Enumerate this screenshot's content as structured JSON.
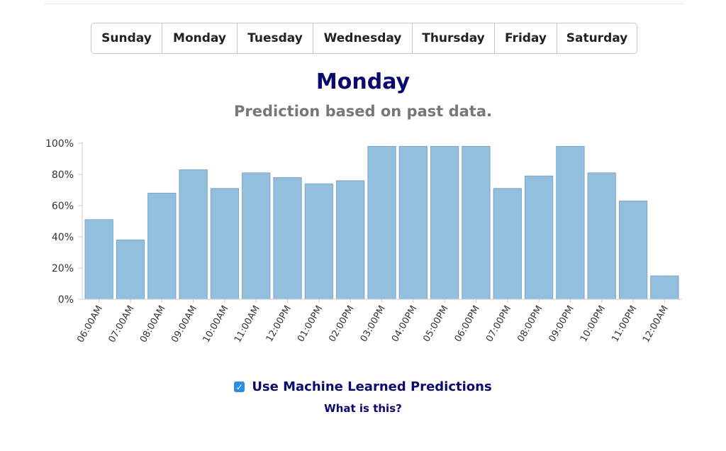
{
  "day_tabs": [
    "Sunday",
    "Monday",
    "Tuesday",
    "Wednesday",
    "Thursday",
    "Friday",
    "Saturday"
  ],
  "selected_day": "Monday",
  "header": {
    "title": "Monday",
    "subtitle": "Prediction based on past data."
  },
  "chart_data": {
    "type": "bar",
    "title": "Monday",
    "subtitle": "Prediction based on past data.",
    "xlabel": "",
    "ylabel": "",
    "categories": [
      "06:00AM",
      "07:00AM",
      "08:00AM",
      "09:00AM",
      "10:00AM",
      "11:00AM",
      "12:00PM",
      "01:00PM",
      "02:00PM",
      "03:00PM",
      "04:00PM",
      "05:00PM",
      "06:00PM",
      "07:00PM",
      "08:00PM",
      "09:00PM",
      "10:00PM",
      "11:00PM",
      "12:00AM"
    ],
    "values": [
      51,
      38,
      68,
      83,
      71,
      81,
      78,
      74,
      76,
      98,
      98,
      98,
      98,
      71,
      79,
      98,
      81,
      63,
      15
    ],
    "ylim": [
      0,
      100
    ],
    "yticks": [
      0,
      20,
      40,
      60,
      80,
      100
    ],
    "ytick_labels": [
      "0%",
      "20%",
      "40%",
      "60%",
      "80%",
      "100%"
    ],
    "grid": false,
    "bar_color": "#93bfdf",
    "bar_edge_color": "#7fa6c3"
  },
  "ml_predictions": {
    "label": "Use Machine Learned Predictions",
    "checked": true,
    "help_link": "What is this?"
  },
  "colors": {
    "title": "#0a0a6e",
    "subtitle": "#777777",
    "checkbox": "#2a8ee6"
  }
}
